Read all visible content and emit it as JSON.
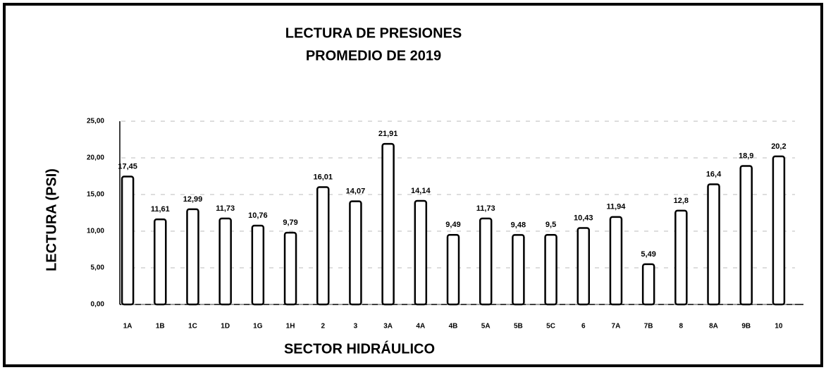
{
  "chart_data": {
    "type": "bar",
    "title": "LECTURA DE PRESIONES",
    "subtitle": "PROMEDIO DE 2019",
    "x_label": "SECTOR HIDRÁULICO",
    "y_label": "LECTURA (PSI)",
    "categories": [
      "1A",
      "1B",
      "1C",
      "1D",
      "1G",
      "1H",
      "2",
      "3",
      "3A",
      "4A",
      "4B",
      "5A",
      "5B",
      "5C",
      "6",
      "7A",
      "7B",
      "8",
      "8A",
      "9B",
      "10"
    ],
    "values": [
      17.45,
      11.61,
      12.99,
      11.73,
      10.76,
      9.79,
      16.01,
      14.07,
      21.91,
      14.14,
      9.49,
      11.73,
      9.48,
      9.5,
      10.43,
      11.94,
      5.49,
      12.8,
      16.4,
      18.9,
      20.2
    ],
    "value_labels": [
      "17,45",
      "11,61",
      "12,99",
      "11,73",
      "10,76",
      "9,79",
      "16,01",
      "14,07",
      "21,91",
      "14,14",
      "9,49",
      "11,73",
      "9,48",
      "9,5",
      "10,43",
      "11,94",
      "5,49",
      "12,8",
      "16,4",
      "18,9",
      "20,2"
    ],
    "color": "#ffffff",
    "ylim": [
      0,
      25
    ],
    "yticks": [
      {
        "value": 0,
        "label": "0,00"
      },
      {
        "value": 5,
        "label": "5,00"
      },
      {
        "value": 10,
        "label": "10,00"
      },
      {
        "value": 15,
        "label": "15,00"
      },
      {
        "value": 20,
        "label": "20,00"
      },
      {
        "value": 25,
        "label": "25,00"
      }
    ],
    "grid": true
  }
}
